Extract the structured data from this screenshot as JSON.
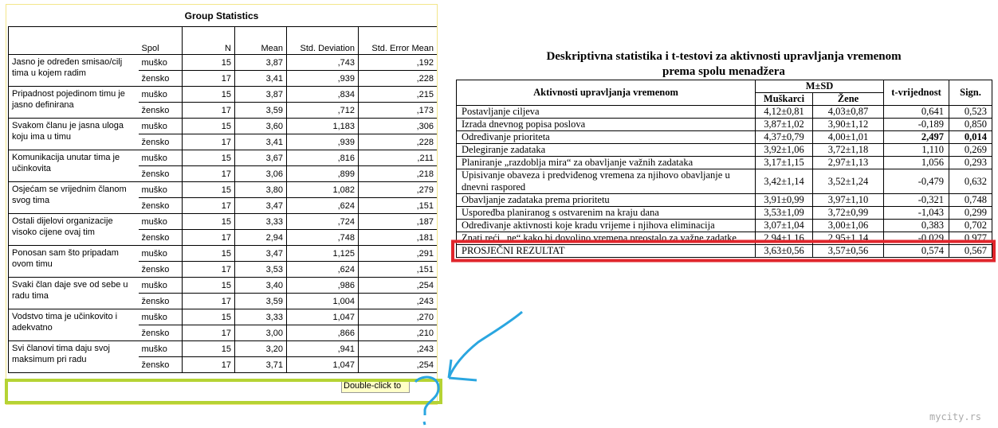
{
  "left": {
    "title": "Group Statistics",
    "headers": [
      "Spol",
      "N",
      "Mean",
      "Std. Deviation",
      "Std. Error Mean"
    ],
    "groups": [
      {
        "label": "Jasno je određen smisao/cilj tima u kojem radim",
        "rows": [
          [
            "muško",
            "15",
            "3,87",
            ",743",
            ",192"
          ],
          [
            "žensko",
            "17",
            "3,41",
            ",939",
            ",228"
          ]
        ]
      },
      {
        "label": "Pripadnost pojedinom timu je jasno definirana",
        "rows": [
          [
            "muško",
            "15",
            "3,87",
            ",834",
            ",215"
          ],
          [
            "žensko",
            "17",
            "3,59",
            ",712",
            ",173"
          ]
        ]
      },
      {
        "label": "Svakom članu je jasna uloga koju ima u timu",
        "rows": [
          [
            "muško",
            "15",
            "3,60",
            "1,183",
            ",306"
          ],
          [
            "žensko",
            "17",
            "3,41",
            ",939",
            ",228"
          ]
        ]
      },
      {
        "label": "Komunikacija unutar tima je učinkovita",
        "rows": [
          [
            "muško",
            "15",
            "3,67",
            ",816",
            ",211"
          ],
          [
            "žensko",
            "17",
            "3,06",
            ",899",
            ",218"
          ]
        ]
      },
      {
        "label": "Osjećam se vrijednim članom svog tima",
        "rows": [
          [
            "muško",
            "15",
            "3,80",
            "1,082",
            ",279"
          ],
          [
            "žensko",
            "17",
            "3,47",
            ",624",
            ",151"
          ]
        ]
      },
      {
        "label": "Ostali dijelovi organizacije visoko cijene ovaj tim",
        "rows": [
          [
            "muško",
            "15",
            "3,33",
            ",724",
            ",187"
          ],
          [
            "žensko",
            "17",
            "2,94",
            ",748",
            ",181"
          ]
        ]
      },
      {
        "label": "Ponosan sam što pripadam ovom timu",
        "rows": [
          [
            "muško",
            "15",
            "3,47",
            "1,125",
            ",291"
          ],
          [
            "žensko",
            "17",
            "3,53",
            ",624",
            ",151"
          ]
        ]
      },
      {
        "label": "Svaki član daje sve od sebe u radu tima",
        "rows": [
          [
            "muško",
            "15",
            "3,40",
            ",986",
            ",254"
          ],
          [
            "žensko",
            "17",
            "3,59",
            "1,004",
            ",243"
          ]
        ]
      },
      {
        "label": "Vodstvo tima je učinkovito i adekvatno",
        "rows": [
          [
            "muško",
            "15",
            "3,33",
            "1,047",
            ",270"
          ],
          [
            "žensko",
            "17",
            "3,00",
            ",866",
            ",210"
          ]
        ]
      },
      {
        "label": "Svi članovi tima daju svoj maksimum pri radu",
        "rows": [
          [
            "muško",
            "15",
            "3,20",
            ",941",
            ",243"
          ],
          [
            "žensko",
            "17",
            "3,71",
            "1,047",
            ",254"
          ]
        ]
      }
    ],
    "tooltip": "Double-click to"
  },
  "right": {
    "title_lines": [
      "Deskriptivna statistika i t-testovi za aktivnosti upravljanja vremenom",
      "prema spolu menadžera"
    ],
    "headers": {
      "activity": "Aktivnosti upravljanja vremenom",
      "msd": "M±SD",
      "male": "Muškarci",
      "female": "Žene",
      "t": "t-vrijednost",
      "sign": "Sign."
    },
    "bold_row": 2,
    "rows": [
      [
        "Postavljanje ciljeva",
        "4,12±0,81",
        "4,03±0,87",
        "0,641",
        "0,523"
      ],
      [
        "Izrada dnevnog popisa poslova",
        "3,87±1,02",
        "3,90±1,12",
        "-0,189",
        "0,850"
      ],
      [
        "Određivanje prioriteta",
        "4,37±0,79",
        "4,00±1,01",
        "2,497",
        "0,014"
      ],
      [
        "Delegiranje zadataka",
        "3,92±1,06",
        "3,72±1,18",
        "1,110",
        "0,269"
      ],
      [
        "Planiranje „razdoblja mira“ za obavljanje važnih zadataka",
        "3,17±1,15",
        "2,97±1,13",
        "1,056",
        "0,293"
      ],
      [
        "Upisivanje obaveza i predviđenog vremena za njihovo obavljanje u dnevni raspored",
        "3,42±1,14",
        "3,52±1,24",
        "-0,479",
        "0,632"
      ],
      [
        "Obavljanje zadataka prema prioritetu",
        "3,91±0,99",
        "3,97±1,10",
        "-0,321",
        "0,748"
      ],
      [
        "Uspoređba planiranog s ostvarenim na kraju dana",
        "3,53±1,09",
        "3,72±0,99",
        "-1,043",
        "0,299"
      ],
      [
        "Određivanje aktivnosti koje kradu vrijeme i njihova eliminacija",
        "3,07±1,04",
        "3,00±1,06",
        "0,383",
        "0,702"
      ],
      [
        "Znati reći „ne“ kako bi dovoljno vremena preostalo za važne zadatke",
        "2,94±1,16",
        "2,95±1,14",
        "-0,029",
        "0,977"
      ],
      [
        "PROSJEČNI REZULTAT",
        "3,63±0,56",
        "3,57±0,56",
        "0,574",
        "0,567"
      ]
    ]
  },
  "watermark": "mycity.rs"
}
